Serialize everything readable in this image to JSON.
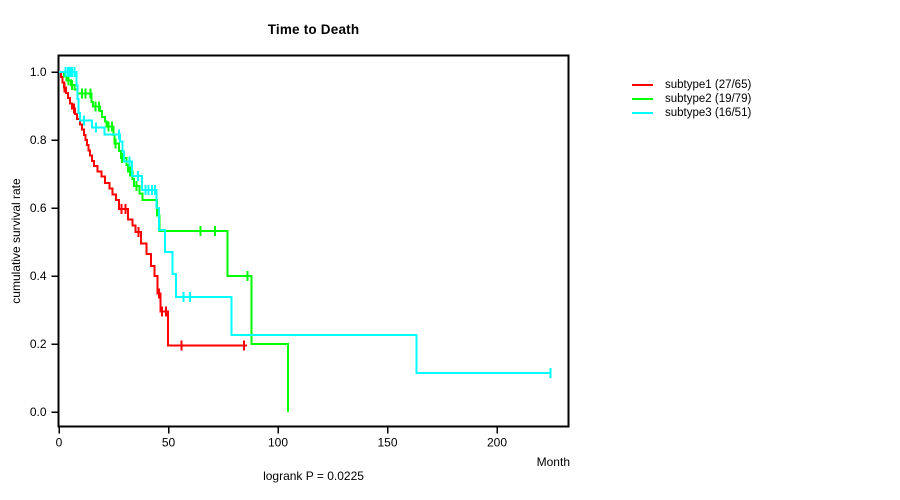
{
  "chart_data": {
    "type": "line",
    "variant": "kaplan-meier-step",
    "title": "Time to Death",
    "ylabel": "cumulative survival rate",
    "xlabel": "Month",
    "footnote": "logrank P = 0.0225",
    "grid": false,
    "legend_position": "outside-top-right",
    "x_axis": {
      "ticks": [
        0,
        50,
        100,
        150,
        200
      ],
      "tick_labels": [
        "0",
        "50",
        "100",
        "150",
        "200"
      ],
      "range": [
        0,
        232
      ]
    },
    "y_axis": {
      "ticks": [
        0,
        0.2,
        0.4,
        0.6,
        0.8,
        1.0
      ],
      "tick_labels": [
        "0.0",
        "0.2",
        "0.4",
        "0.6",
        "0.8",
        "1.0"
      ],
      "range": [
        0,
        1
      ]
    },
    "series": [
      {
        "name": "subtype1",
        "label": "subtype1 (27/65)",
        "color": "#ff0000",
        "events": 27,
        "n": 65,
        "steps": [
          [
            0,
            1.0
          ],
          [
            0.8,
            0.985
          ],
          [
            1.6,
            0.969
          ],
          [
            2.3,
            0.954
          ],
          [
            3.2,
            0.938
          ],
          [
            4,
            0.923
          ],
          [
            5,
            0.908
          ],
          [
            6,
            0.892
          ],
          [
            7.2,
            0.877
          ],
          [
            8.2,
            0.862
          ],
          [
            9.5,
            0.846
          ],
          [
            10.5,
            0.831
          ],
          [
            11.5,
            0.815
          ],
          [
            12.2,
            0.8
          ],
          [
            12.8,
            0.785
          ],
          [
            13.4,
            0.769
          ],
          [
            14.2,
            0.754
          ],
          [
            15,
            0.738
          ],
          [
            16,
            0.723
          ],
          [
            17.5,
            0.708
          ],
          [
            19.5,
            0.692
          ],
          [
            21,
            0.674
          ],
          [
            23,
            0.657
          ],
          [
            24.5,
            0.64
          ],
          [
            26,
            0.623
          ],
          [
            27.5,
            0.597
          ],
          [
            31.5,
            0.566
          ],
          [
            33.5,
            0.548
          ],
          [
            35,
            0.53
          ],
          [
            37.5,
            0.496
          ],
          [
            40,
            0.465
          ],
          [
            42,
            0.43
          ],
          [
            43.5,
            0.4
          ],
          [
            45,
            0.348
          ],
          [
            46.3,
            0.295
          ],
          [
            49.7,
            0.196
          ]
        ],
        "censor_months": [
          2.5,
          6.8,
          28.6,
          30.3,
          36.3,
          45.6,
          47.0,
          48.8,
          56.0,
          84.5
        ],
        "end_month": 85.9
      },
      {
        "name": "subtype2",
        "label": "subtype2 (19/79)",
        "color": "#00ff00",
        "events": 19,
        "n": 79,
        "steps": [
          [
            0,
            1.0
          ],
          [
            2.3,
            0.987
          ],
          [
            3.5,
            0.975
          ],
          [
            5.5,
            0.962
          ],
          [
            7,
            0.949
          ],
          [
            8.5,
            0.937
          ],
          [
            14.8,
            0.912
          ],
          [
            15.6,
            0.899
          ],
          [
            18.8,
            0.886
          ],
          [
            19.6,
            0.868
          ],
          [
            21,
            0.855
          ],
          [
            21.8,
            0.84
          ],
          [
            24.8,
            0.815
          ],
          [
            25.4,
            0.79
          ],
          [
            27.3,
            0.768
          ],
          [
            28.2,
            0.747
          ],
          [
            30.8,
            0.727
          ],
          [
            31.6,
            0.708
          ],
          [
            33.5,
            0.686
          ],
          [
            34.3,
            0.664
          ],
          [
            36.8,
            0.643
          ],
          [
            38.2,
            0.623
          ],
          [
            44.8,
            0.578
          ],
          [
            45.8,
            0.533
          ],
          [
            76.9,
            0.4
          ],
          [
            88.0,
            0.2
          ],
          [
            104.6,
            0.0
          ]
        ],
        "censor_months": [
          4.4,
          5.9,
          10.6,
          12.1,
          14.4,
          16.6,
          18.2,
          22.7,
          24.2,
          25.9,
          28.8,
          32.5,
          35.4,
          64.5,
          71.3,
          86.0
        ],
        "end_month": 104.6
      },
      {
        "name": "subtype3",
        "label": "subtype3 (16/51)",
        "color": "#00ffff",
        "events": 16,
        "n": 51,
        "steps": [
          [
            0,
            1.0
          ],
          [
            8,
            0.96
          ],
          [
            8.5,
            0.92
          ],
          [
            9,
            0.88
          ],
          [
            9.6,
            0.858
          ],
          [
            15,
            0.837
          ],
          [
            20.8,
            0.816
          ],
          [
            27.8,
            0.796
          ],
          [
            29,
            0.766
          ],
          [
            29.7,
            0.737
          ],
          [
            33.3,
            0.694
          ],
          [
            37.9,
            0.653
          ],
          [
            44.6,
            0.6
          ],
          [
            45.7,
            0.536
          ],
          [
            48.5,
            0.47
          ],
          [
            51.9,
            0.406
          ],
          [
            53.4,
            0.338
          ],
          [
            78.7,
            0.226
          ],
          [
            163.3,
            0.114
          ]
        ],
        "censor_months": [
          3,
          4,
          5,
          6,
          7,
          11.5,
          17,
          27.3,
          32.3,
          36,
          39.4,
          40.9,
          42.4,
          43.9,
          56.8,
          59.8,
          224.5
        ],
        "end_month": 224.5
      }
    ]
  }
}
